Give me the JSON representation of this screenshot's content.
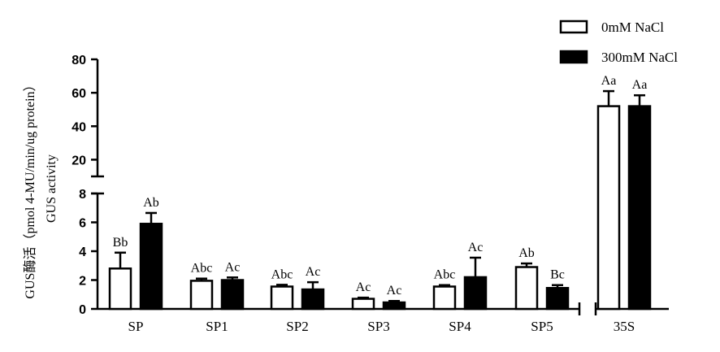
{
  "chart_data": {
    "type": "bar",
    "categories": [
      "SP",
      "SP1",
      "SP2",
      "SP3",
      "SP4",
      "SP5",
      "35S"
    ],
    "series": [
      {
        "name": "0mM NaCl",
        "color": "#ffffff",
        "values": [
          2.8,
          1.95,
          1.55,
          0.7,
          1.55,
          2.9,
          52
        ],
        "errors": [
          1.1,
          0.15,
          0.12,
          0.08,
          0.1,
          0.25,
          9
        ],
        "labels": [
          "Bb",
          "Abc",
          "Abc",
          "Ac",
          "Abc",
          "Ab",
          "Aa"
        ]
      },
      {
        "name": "300mM  NaCl",
        "color": "#000000",
        "values": [
          5.9,
          2.0,
          1.35,
          0.45,
          2.2,
          1.45,
          52
        ],
        "errors": [
          0.75,
          0.18,
          0.5,
          0.1,
          1.35,
          0.2,
          6.5
        ],
        "labels": [
          "Ab",
          "Ac",
          "Ac",
          "Ac",
          "Ac",
          "Bc",
          "Aa"
        ]
      }
    ],
    "ylabel_line1": "GUS酶活（pmol 4-MU/min/ug protein）",
    "ylabel_line2": "GUS activity",
    "y_axis": {
      "lower_range": [
        0,
        8
      ],
      "lower_ticks": [
        "0",
        "2",
        "4",
        "6",
        "8"
      ],
      "upper_range": [
        10,
        80
      ],
      "upper_ticks": [
        "20",
        "40",
        "60",
        "80"
      ],
      "broken": true
    },
    "x_axis_break_before": "35S",
    "legend_position": "top-right"
  }
}
